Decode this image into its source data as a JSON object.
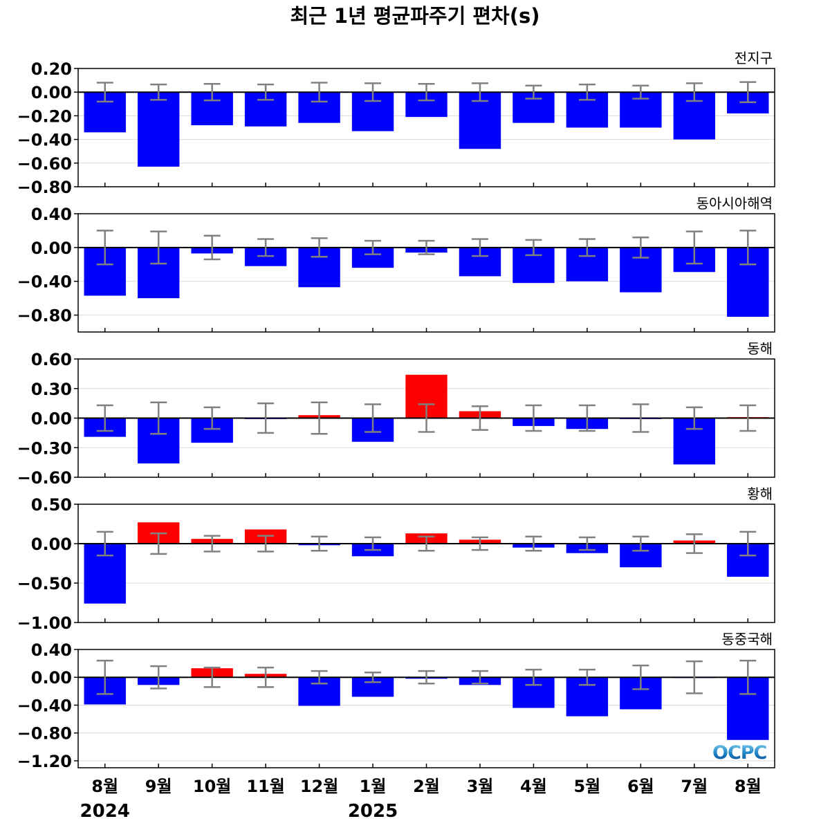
{
  "chart_data": {
    "type": "bar",
    "title": "최근 1년 평균파주기 편차(s)",
    "x_labels": [
      "8월",
      "9월",
      "10월",
      "11월",
      "12월",
      "1월",
      "2월",
      "3월",
      "4월",
      "5월",
      "6월",
      "7월",
      "8월"
    ],
    "year_labels": [
      {
        "index": 0,
        "text": "2024"
      },
      {
        "index": 5,
        "text": "2025"
      }
    ],
    "positive_color": "#ff0000",
    "negative_color": "#0000ff",
    "errorbar_color": "#808080",
    "logo": "OCPC",
    "panels": [
      {
        "region": "전지구",
        "ylim": [
          -0.8,
          0.2
        ],
        "yticks": [
          0.2,
          0.0,
          -0.2,
          -0.4,
          -0.6,
          -0.8
        ],
        "tick_labels": [
          "0.20",
          "0.00",
          "−0.20",
          "−0.40",
          "−0.60",
          "−0.80"
        ],
        "values": [
          -0.34,
          -0.63,
          -0.28,
          -0.29,
          -0.26,
          -0.33,
          -0.21,
          -0.48,
          -0.26,
          -0.3,
          -0.3,
          -0.4,
          -0.18
        ],
        "error": [
          0.08,
          0.065,
          0.07,
          0.065,
          0.08,
          0.075,
          0.07,
          0.075,
          0.055,
          0.065,
          0.055,
          0.075,
          0.085
        ]
      },
      {
        "region": "동아시아해역",
        "ylim": [
          -1.0,
          0.4
        ],
        "yticks": [
          0.4,
          0.0,
          -0.4,
          -0.8
        ],
        "tick_labels": [
          "0.40",
          "0.00",
          "−0.40",
          "−0.80"
        ],
        "values": [
          -0.57,
          -0.6,
          -0.07,
          -0.22,
          -0.47,
          -0.24,
          -0.06,
          -0.34,
          -0.42,
          -0.4,
          -0.53,
          -0.29,
          -0.82
        ],
        "error": [
          0.2,
          0.19,
          0.14,
          0.1,
          0.11,
          0.08,
          0.08,
          0.1,
          0.09,
          0.1,
          0.12,
          0.19,
          0.2
        ]
      },
      {
        "region": "동해",
        "ylim": [
          -0.6,
          0.6
        ],
        "yticks": [
          0.6,
          0.3,
          0.0,
          -0.3,
          -0.6
        ],
        "tick_labels": [
          "0.60",
          "0.30",
          "0.00",
          "−0.30",
          "−0.60"
        ],
        "values": [
          -0.19,
          -0.46,
          -0.25,
          -0.01,
          0.03,
          -0.24,
          0.44,
          0.07,
          -0.08,
          -0.11,
          -0.01,
          -0.47,
          0.01
        ],
        "error": [
          0.13,
          0.16,
          0.11,
          0.15,
          0.16,
          0.14,
          0.14,
          0.12,
          0.13,
          0.13,
          0.14,
          0.11,
          0.13
        ]
      },
      {
        "region": "황해",
        "ylim": [
          -1.0,
          0.5
        ],
        "yticks": [
          0.5,
          0.0,
          -0.5,
          -1.0
        ],
        "tick_labels": [
          "0.50",
          "0.00",
          "−0.50",
          "−1.00"
        ],
        "values": [
          -0.76,
          0.27,
          0.06,
          0.18,
          -0.02,
          -0.16,
          0.13,
          0.05,
          -0.05,
          -0.12,
          -0.3,
          0.04,
          -0.42
        ],
        "error": [
          0.15,
          0.13,
          0.1,
          0.1,
          0.09,
          0.08,
          0.09,
          0.08,
          0.09,
          0.08,
          0.09,
          0.12,
          0.15
        ]
      },
      {
        "region": "동중국해",
        "ylim": [
          -1.3,
          0.4
        ],
        "yticks": [
          0.4,
          0.0,
          -0.4,
          -0.8,
          -1.2
        ],
        "tick_labels": [
          "0.40",
          "0.00",
          "−0.40",
          "−0.80",
          "−1.20"
        ],
        "values": [
          -0.39,
          -0.11,
          0.13,
          0.05,
          -0.41,
          -0.28,
          -0.02,
          -0.11,
          -0.44,
          -0.56,
          -0.46,
          -0.01,
          -0.9
        ],
        "error": [
          0.24,
          0.16,
          0.14,
          0.14,
          0.09,
          0.07,
          0.09,
          0.09,
          0.11,
          0.11,
          0.17,
          0.23,
          0.24
        ]
      }
    ]
  }
}
